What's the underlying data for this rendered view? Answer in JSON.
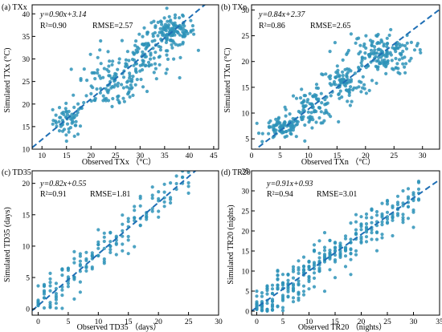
{
  "colors": {
    "point": "#2e93b8",
    "fit_line": "#1f6fb5",
    "axis": "#000000"
  },
  "chart_data": [
    {
      "type": "scatter",
      "panel_label": "(a) TXx",
      "xlabel": "Observed TXx （°C）",
      "ylabel": "Simulated TXx (°C)",
      "xlim": [
        8,
        46
      ],
      "ylim": [
        10,
        42
      ],
      "xticks": [
        10,
        15,
        20,
        25,
        30,
        35,
        40,
        45
      ],
      "yticks": [
        10,
        15,
        20,
        25,
        30,
        35,
        40
      ],
      "fit_line": {
        "slope": 0.9,
        "intercept": 3.14,
        "style": "dashed"
      },
      "annotation": {
        "equation": "y=0.90x+3.14",
        "r2": "R²=0.90",
        "rmse": "RMSE=2.57"
      },
      "clusters": [
        {
          "cx": 15.5,
          "cy": 16.5,
          "sx": 1.6,
          "sy": 1.8,
          "n": 60
        },
        {
          "cx": 24.0,
          "cy": 24.5,
          "sx": 3.5,
          "sy": 3.0,
          "n": 110
        },
        {
          "cx": 31.0,
          "cy": 31.0,
          "sx": 2.6,
          "sy": 2.6,
          "n": 90
        },
        {
          "cx": 36.5,
          "cy": 36.0,
          "sx": 2.4,
          "sy": 1.6,
          "n": 130
        }
      ]
    },
    {
      "type": "scatter",
      "panel_label": "(b) TXn",
      "xlabel": "Observed TXn （°C）",
      "ylabel": "Simulated TXn (°C)",
      "xlim": [
        0,
        33
      ],
      "ylim": [
        3,
        31
      ],
      "xticks": [
        0,
        5,
        10,
        15,
        20,
        25,
        30
      ],
      "yticks": [
        5,
        10,
        15,
        20,
        25,
        30
      ],
      "fit_line": {
        "slope": 0.84,
        "intercept": 2.37,
        "style": "dashed"
      },
      "annotation": {
        "equation": "y=0.84x+2.37",
        "r2": "R²=0.86",
        "rmse": "RMSE=2.65"
      },
      "clusters": [
        {
          "cx": 5.5,
          "cy": 7.0,
          "sx": 1.6,
          "sy": 1.0,
          "n": 80
        },
        {
          "cx": 10.5,
          "cy": 11.0,
          "sx": 2.0,
          "sy": 1.6,
          "n": 90
        },
        {
          "cx": 16.0,
          "cy": 15.5,
          "sx": 2.2,
          "sy": 1.8,
          "n": 90
        },
        {
          "cx": 22.5,
          "cy": 21.5,
          "sx": 3.0,
          "sy": 2.0,
          "n": 160
        }
      ]
    },
    {
      "type": "scatter",
      "panel_label": "(c) TD35",
      "xlabel": "Observed TD35 （days）",
      "ylabel": "Simulated TD35 (days)",
      "xlim": [
        -1,
        30
      ],
      "ylim": [
        -1,
        22
      ],
      "xticks": [
        0,
        5,
        10,
        15,
        20,
        25,
        30
      ],
      "yticks": [
        0,
        5,
        10,
        15,
        20
      ],
      "fit_line": {
        "slope": 0.82,
        "intercept": 0.55,
        "style": "dashed"
      },
      "annotation": {
        "equation": "y=0.82x+0.55",
        "r2": "R²=0.91",
        "rmse": "RMSE=1.81"
      },
      "discrete_x": true,
      "columns": {
        "x_min": 0,
        "x_max": 25,
        "slope": 0.82,
        "intercept": 0.55,
        "spread": 1.8,
        "n_per_col": 9
      }
    },
    {
      "type": "scatter",
      "panel_label": "(d) TR20",
      "xlabel": "Observed TR20 （nights）",
      "ylabel": "Simulated TR20 (nights)",
      "xlim": [
        -1,
        35
      ],
      "ylim": [
        -1,
        35
      ],
      "xticks": [
        0,
        5,
        10,
        15,
        20,
        25,
        30,
        35
      ],
      "yticks": [
        0,
        5,
        10,
        15,
        20,
        25,
        30,
        35
      ],
      "fit_line": {
        "slope": 0.91,
        "intercept": 0.93,
        "style": "dashed"
      },
      "annotation": {
        "equation": "y=0.91x+0.93",
        "r2": "R²=0.94",
        "rmse": "RMSE=3.01"
      },
      "discrete_x": true,
      "columns": {
        "x_min": 0,
        "x_max": 31,
        "slope": 0.91,
        "intercept": 0.93,
        "spread": 2.6,
        "n_per_col": 14
      }
    }
  ]
}
